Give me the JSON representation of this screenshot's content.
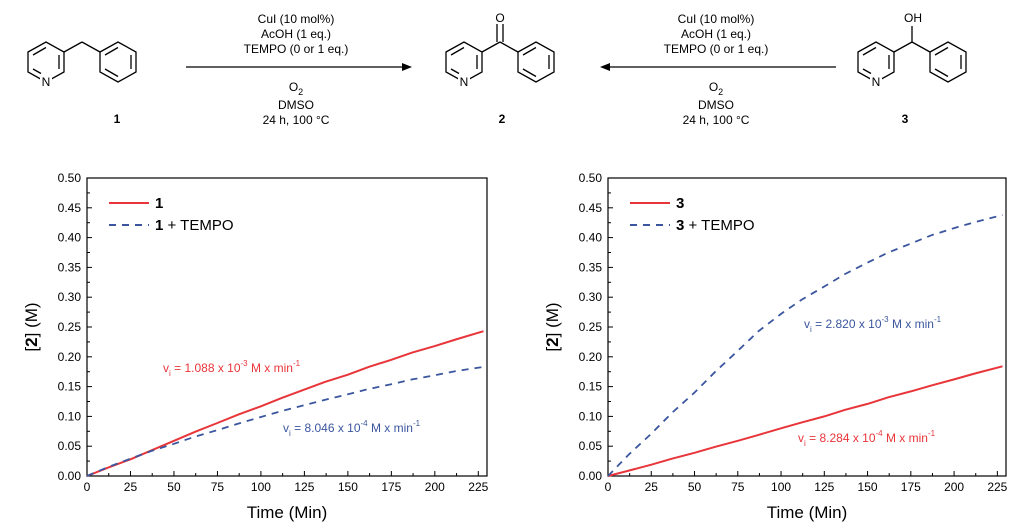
{
  "scheme": {
    "left_conditions": [
      "CuI (10 mol%)",
      "AcOH (1 eq.)",
      "TEMPO (0 or 1 eq.)",
      "O",
      "DMSO",
      "24 h, 100 °C"
    ],
    "right_conditions": [
      "CuI (10 mol%)",
      "AcOH (1 eq.)",
      "TEMPO (0 or 1 eq.)",
      "O",
      "DMSO",
      "24 h, 100 °C"
    ],
    "o2_subscript": "2",
    "compound_labels": [
      "1",
      "2",
      "3"
    ],
    "atom_labels": {
      "n": "N",
      "o": "O",
      "oh": "OH"
    }
  },
  "chart_data": [
    {
      "type": "line",
      "xlabel": "Time (Min)",
      "ylabel_bracket_label": "2",
      "ylabel_rest": " (M)",
      "xlim": [
        0,
        230
      ],
      "ylim": [
        0,
        0.5
      ],
      "xticks": [
        0,
        25,
        50,
        75,
        100,
        125,
        150,
        175,
        200,
        225
      ],
      "yticks": [
        0.0,
        0.05,
        0.1,
        0.15,
        0.2,
        0.25,
        0.3,
        0.35,
        0.4,
        0.45,
        0.5
      ],
      "legend_position": "top-left",
      "series": [
        {
          "name_bold": "1",
          "name_rest": "",
          "color": "#e8353a",
          "dash": "solid",
          "x": [
            0,
            12,
            25,
            37,
            50,
            62,
            75,
            87,
            100,
            112,
            125,
            137,
            150,
            162,
            175,
            187,
            200,
            212,
            228
          ],
          "y": [
            0.0,
            0.014,
            0.028,
            0.043,
            0.059,
            0.074,
            0.089,
            0.103,
            0.117,
            0.131,
            0.145,
            0.158,
            0.17,
            0.183,
            0.195,
            0.207,
            0.218,
            0.229,
            0.243
          ]
        },
        {
          "name_bold": "1",
          "name_rest": " + TEMPO",
          "color": "#3b569e",
          "dash": "dashed",
          "x": [
            0,
            12,
            25,
            37,
            50,
            62,
            75,
            87,
            100,
            112,
            125,
            137,
            150,
            162,
            175,
            187,
            200,
            212,
            228
          ],
          "y": [
            0.0,
            0.015,
            0.029,
            0.042,
            0.054,
            0.066,
            0.077,
            0.088,
            0.099,
            0.109,
            0.119,
            0.128,
            0.137,
            0.146,
            0.154,
            0.162,
            0.169,
            0.176,
            0.183
          ]
        }
      ],
      "annotations": [
        {
          "main": "v",
          "sub": "i",
          "text1": " = 1.088 x 10",
          "sup": "-3",
          "text2": " M x min",
          "sup2": "-1",
          "color": "#e8353a"
        },
        {
          "main": "v",
          "sub": "i",
          "text1": " = 8.046 x 10",
          "sup": "-4",
          "text2": " M x min",
          "sup2": "-1",
          "color": "#3b569e"
        }
      ]
    },
    {
      "type": "line",
      "xlabel": "Time (Min)",
      "ylabel_bracket_label": "2",
      "ylabel_rest": " (M)",
      "xlim": [
        0,
        230
      ],
      "ylim": [
        0,
        0.5
      ],
      "xticks": [
        0,
        25,
        50,
        75,
        100,
        125,
        150,
        175,
        200,
        225
      ],
      "yticks": [
        0.0,
        0.05,
        0.1,
        0.15,
        0.2,
        0.25,
        0.3,
        0.35,
        0.4,
        0.45,
        0.5
      ],
      "legend_position": "top-left",
      "series": [
        {
          "name_bold": "3",
          "name_rest": "",
          "color": "#e8353a",
          "dash": "solid",
          "x": [
            0,
            12,
            25,
            37,
            50,
            62,
            75,
            87,
            100,
            112,
            125,
            137,
            150,
            162,
            175,
            187,
            200,
            212,
            228
          ],
          "y": [
            0.0,
            0.009,
            0.019,
            0.029,
            0.039,
            0.049,
            0.059,
            0.069,
            0.08,
            0.09,
            0.1,
            0.111,
            0.121,
            0.132,
            0.142,
            0.152,
            0.162,
            0.172,
            0.184
          ]
        },
        {
          "name_bold": "3",
          "name_rest": " + TEMPO",
          "color": "#3b569e",
          "dash": "dashed",
          "x": [
            0,
            12,
            25,
            37,
            50,
            62,
            75,
            87,
            100,
            112,
            125,
            137,
            150,
            162,
            175,
            187,
            200,
            212,
            228
          ],
          "y": [
            0.0,
            0.036,
            0.071,
            0.106,
            0.14,
            0.175,
            0.21,
            0.243,
            0.272,
            0.296,
            0.318,
            0.339,
            0.358,
            0.375,
            0.39,
            0.404,
            0.416,
            0.426,
            0.438
          ]
        }
      ],
      "annotations": [
        {
          "main": "v",
          "sub": "i",
          "text1": " = 2.820 x 10",
          "sup": "-3",
          "text2": " M x min",
          "sup2": "-1",
          "color": "#3b569e"
        },
        {
          "main": "v",
          "sub": "i",
          "text1": " = 8.284 x 10",
          "sup": "-4",
          "text2": " M x min",
          "sup2": "-1",
          "color": "#e8353a"
        }
      ]
    }
  ]
}
